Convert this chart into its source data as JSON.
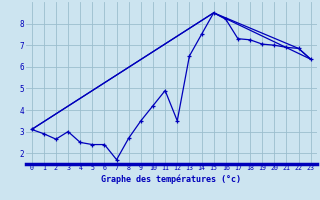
{
  "xlabel": "Graphe des températures (°c)",
  "xlim_min": -0.5,
  "xlim_max": 23.5,
  "ylim_min": 1.5,
  "ylim_max": 9.0,
  "yticks": [
    2,
    3,
    4,
    5,
    6,
    7,
    8
  ],
  "xticks": [
    0,
    1,
    2,
    3,
    4,
    5,
    6,
    7,
    8,
    9,
    10,
    11,
    12,
    13,
    14,
    15,
    16,
    17,
    18,
    19,
    20,
    21,
    22,
    23
  ],
  "line_color": "#0000bb",
  "bg_color": "#cce4f0",
  "grid_color": "#9bbece",
  "main_x": [
    0,
    1,
    2,
    3,
    4,
    5,
    6,
    7,
    8,
    9,
    10,
    11,
    12,
    13,
    14,
    15,
    16,
    17,
    18,
    19,
    20,
    21,
    22,
    23
  ],
  "main_y": [
    3.1,
    2.9,
    2.65,
    3.0,
    2.5,
    2.4,
    2.4,
    1.7,
    2.7,
    3.5,
    4.2,
    4.9,
    3.5,
    6.5,
    7.5,
    8.5,
    8.2,
    7.3,
    7.25,
    7.05,
    7.0,
    6.9,
    6.85,
    6.35
  ],
  "trend1_x": [
    0,
    15,
    22,
    23
  ],
  "trend1_y": [
    3.1,
    8.5,
    6.85,
    6.35
  ],
  "trend2_x": [
    0,
    15,
    23
  ],
  "trend2_y": [
    3.1,
    8.5,
    6.35
  ]
}
